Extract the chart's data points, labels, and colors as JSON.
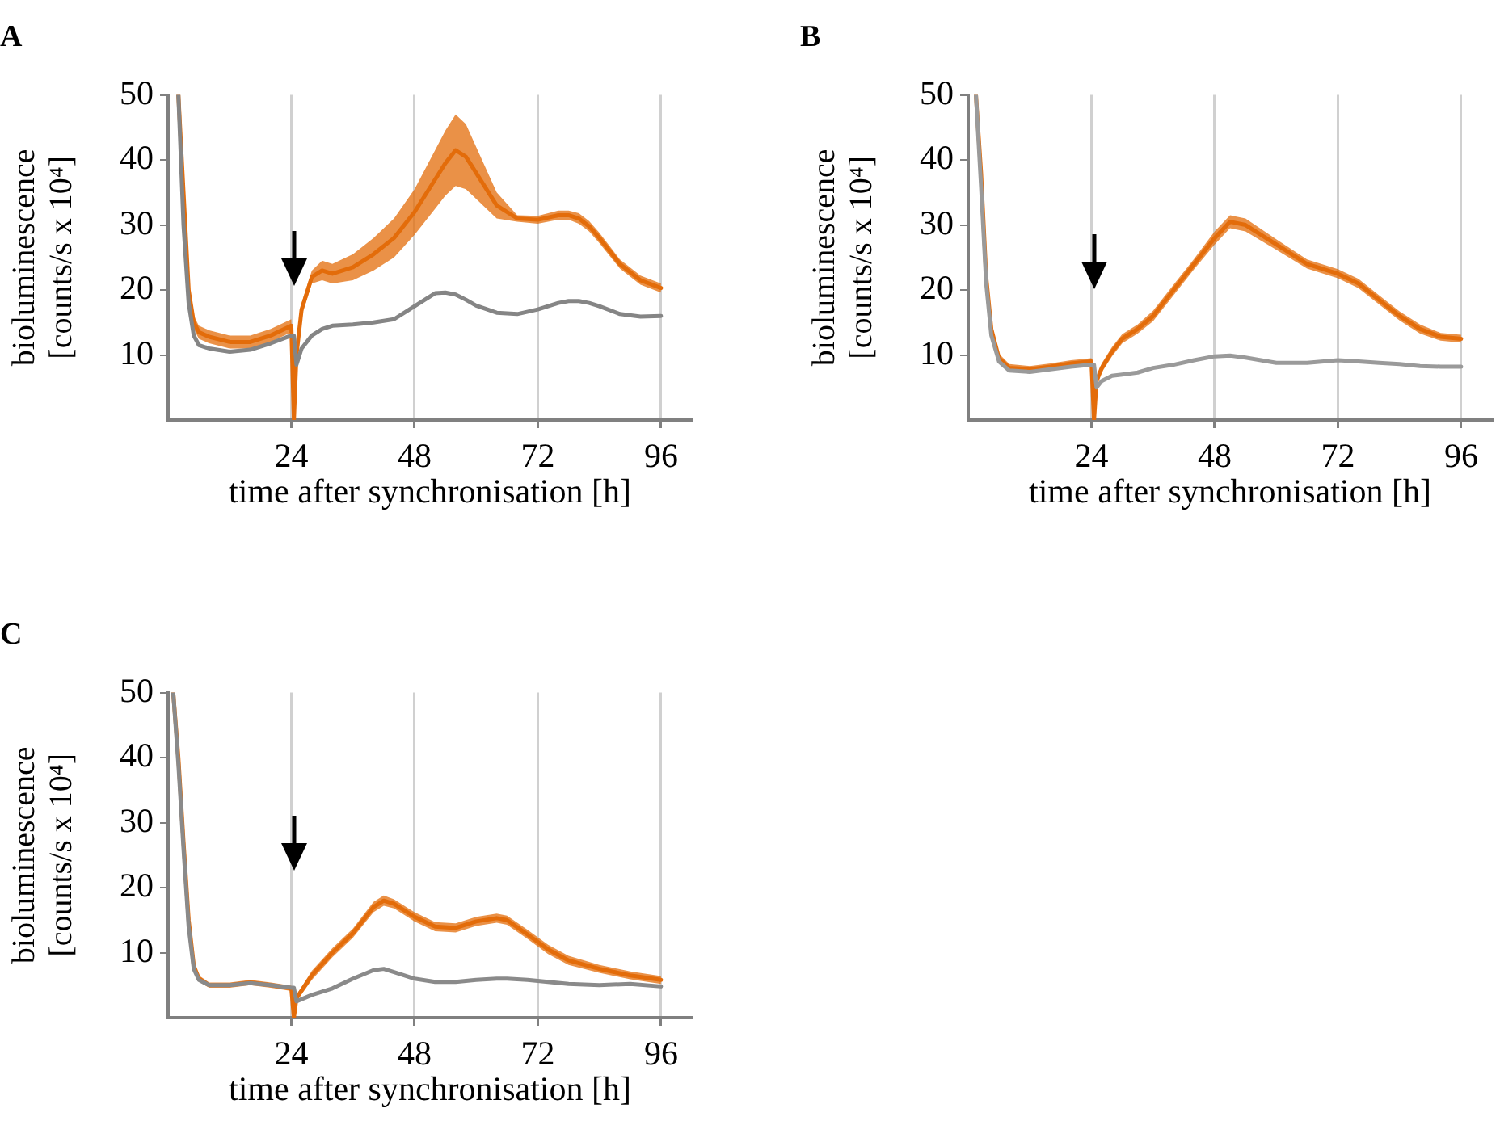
{
  "chart_data": [
    {
      "type": "line",
      "title": "A",
      "xlabel": "time after synchronisation [h]",
      "ylabel": "bioluminescence\n[counts/s x 10⁴]",
      "xlim": [
        0,
        102
      ],
      "xticks": [
        24,
        48,
        72,
        96
      ],
      "ylim": [
        0,
        50
      ],
      "yticks": [
        10,
        20,
        30,
        40,
        50
      ],
      "grid": "x",
      "marker": "none",
      "line_style": "solid",
      "x": [
        2,
        3,
        4,
        5,
        6,
        8,
        12,
        16,
        20,
        24,
        24.5,
        25,
        26,
        28,
        30,
        32,
        36,
        40,
        44,
        48,
        52,
        54,
        56,
        58,
        60,
        64,
        68,
        72,
        76,
        78,
        80,
        82,
        84,
        88,
        92,
        96
      ],
      "series": [
        {
          "color": "#e36c0a",
          "values": [
            50,
            35,
            20,
            15,
            13.5,
            12.8,
            12,
            12,
            13,
            14.5,
            0,
            10,
            17,
            22,
            23,
            22.5,
            23.5,
            25.5,
            28,
            32,
            37,
            39.5,
            41.5,
            40.5,
            38,
            33,
            31,
            30.8,
            31.5,
            31.5,
            31,
            29.8,
            28,
            24,
            21.5,
            20.3
          ],
          "lower": [
            49,
            34,
            19,
            14,
            12.5,
            11.8,
            11,
            11,
            12,
            13.5,
            0,
            9,
            16,
            21,
            21.5,
            21,
            21.5,
            23,
            25,
            28.5,
            32.5,
            34.5,
            36,
            35.5,
            34,
            31,
            30.5,
            30.2,
            30.8,
            30.8,
            30.2,
            29,
            27.2,
            23.3,
            20.8,
            19.6
          ],
          "upper": [
            50,
            36,
            21,
            16,
            14.5,
            13.8,
            13,
            13,
            14,
            15.5,
            0,
            11,
            18,
            23,
            24.5,
            24,
            25.5,
            28,
            31,
            35.5,
            41.5,
            44.5,
            47,
            45.5,
            42,
            35,
            31.5,
            31.4,
            32.2,
            32.2,
            31.8,
            30.6,
            28.8,
            24.7,
            22.2,
            21
          ]
        },
        {
          "color": "#858585",
          "values": [
            50,
            30,
            18,
            13,
            11.5,
            11,
            10.5,
            10.8,
            11.8,
            13,
            13,
            8.5,
            11,
            13,
            14,
            14.5,
            14.7,
            15,
            15.5,
            17.5,
            19.5,
            19.6,
            19.3,
            18.5,
            17.6,
            16.5,
            16.3,
            17,
            18,
            18.3,
            18.3,
            18,
            17.5,
            16.3,
            15.9,
            16
          ]
        }
      ]
    },
    {
      "type": "line",
      "title": "B",
      "xlabel": "time after synchronisation [h]",
      "ylabel": "bioluminescence\n[counts/s x 10⁴]",
      "xlim": [
        0,
        102
      ],
      "xticks": [
        24,
        48,
        72,
        96
      ],
      "ylim": [
        0,
        50
      ],
      "yticks": [
        10,
        20,
        30,
        40,
        50
      ],
      "grid": "x",
      "marker": "none",
      "line_style": "solid",
      "x": [
        1.5,
        2.5,
        3.5,
        4.5,
        6,
        8,
        12,
        16,
        20,
        24,
        24.5,
        25,
        26,
        28,
        30,
        33,
        36,
        40,
        44,
        48,
        51,
        54,
        60,
        66,
        72,
        76,
        80,
        84,
        88,
        92,
        96
      ],
      "series": [
        {
          "color": "#e36c0a",
          "values": [
            50,
            38,
            22,
            14,
            9.5,
            8,
            7.8,
            8.2,
            8.7,
            9,
            0,
            6,
            8,
            10.5,
            12.5,
            14,
            16,
            20,
            24,
            28,
            30.5,
            30,
            27,
            24,
            22.5,
            21,
            18.5,
            16,
            14,
            12.8,
            12.5
          ],
          "lower": [
            49,
            37,
            21,
            13,
            8.8,
            7.4,
            7.3,
            7.7,
            8.2,
            8.5,
            0,
            5.3,
            7.3,
            9.8,
            11.8,
            13.3,
            15.2,
            19.2,
            23.2,
            27,
            29.5,
            29,
            26.2,
            23.3,
            21.8,
            20.3,
            17.8,
            15.3,
            13.3,
            12.2,
            11.9
          ],
          "upper": [
            50,
            39,
            23,
            15,
            10.2,
            8.6,
            8.3,
            8.7,
            9.2,
            9.5,
            0,
            6.7,
            8.7,
            11.2,
            13.2,
            14.7,
            16.8,
            20.8,
            24.8,
            29,
            31.5,
            31,
            27.8,
            24.7,
            23.2,
            21.7,
            19.2,
            16.7,
            14.7,
            13.4,
            13.1
          ]
        },
        {
          "color": "#9a9a9a",
          "values": [
            50,
            36,
            21,
            13,
            9,
            7.6,
            7.4,
            7.8,
            8.2,
            8.5,
            8.5,
            5,
            6,
            6.8,
            7,
            7.3,
            8,
            8.5,
            9.2,
            9.8,
            9.9,
            9.6,
            8.8,
            8.8,
            9.2,
            9,
            8.8,
            8.6,
            8.3,
            8.2,
            8.2
          ]
        }
      ]
    },
    {
      "type": "line",
      "title": "C",
      "xlabel": "time after synchronisation [h]",
      "ylabel": "bioluminescence\n[counts/s x 10⁴]",
      "xlim": [
        0,
        102
      ],
      "xticks": [
        24,
        48,
        72,
        96
      ],
      "ylim": [
        0,
        50
      ],
      "yticks": [
        10,
        20,
        30,
        40,
        50
      ],
      "grid": "x",
      "marker": "none",
      "line_style": "solid",
      "x": [
        1,
        2,
        3,
        4,
        5,
        6,
        8,
        12,
        16,
        20,
        24,
        24.5,
        25,
        28,
        32,
        36,
        40,
        42,
        44,
        48,
        52,
        56,
        60,
        64,
        66,
        70,
        74,
        78,
        84,
        90,
        96
      ],
      "series": [
        {
          "color": "#e36c0a",
          "values": [
            50,
            40,
            27,
            15,
            8,
            6,
            5,
            5,
            5.4,
            5,
            4.5,
            0,
            3,
            6.5,
            10,
            13,
            17,
            18,
            17.5,
            15.5,
            14,
            13.8,
            14.8,
            15.3,
            15,
            12.8,
            10.5,
            8.8,
            7.5,
            6.5,
            5.8
          ],
          "lower": [
            49,
            39,
            26,
            14,
            7.4,
            5.5,
            4.6,
            4.6,
            5,
            4.6,
            4.1,
            0,
            2.5,
            5.8,
            9.3,
            12.3,
            16.2,
            17.2,
            16.8,
            14.8,
            13.3,
            13.1,
            14.1,
            14.6,
            14.3,
            12.1,
            9.8,
            8.1,
            6.9,
            5.9,
            5.2
          ],
          "upper": [
            50,
            41,
            28,
            16,
            8.6,
            6.5,
            5.4,
            5.4,
            5.8,
            5.4,
            4.9,
            0,
            3.5,
            7.2,
            10.7,
            13.7,
            17.8,
            18.8,
            18.2,
            16.2,
            14.7,
            14.5,
            15.5,
            16,
            15.7,
            13.5,
            11.2,
            9.5,
            8.1,
            7.1,
            6.4
          ]
        },
        {
          "color": "#8a8a8a",
          "values": [
            50,
            39,
            26,
            14,
            7.5,
            5.8,
            5,
            5,
            5.3,
            5,
            4.6,
            4.6,
            2.5,
            3.5,
            4.5,
            6,
            7.3,
            7.5,
            7,
            6,
            5.5,
            5.5,
            5.8,
            6,
            6,
            5.8,
            5.5,
            5.2,
            5,
            5.2,
            4.8
          ]
        }
      ]
    }
  ]
}
